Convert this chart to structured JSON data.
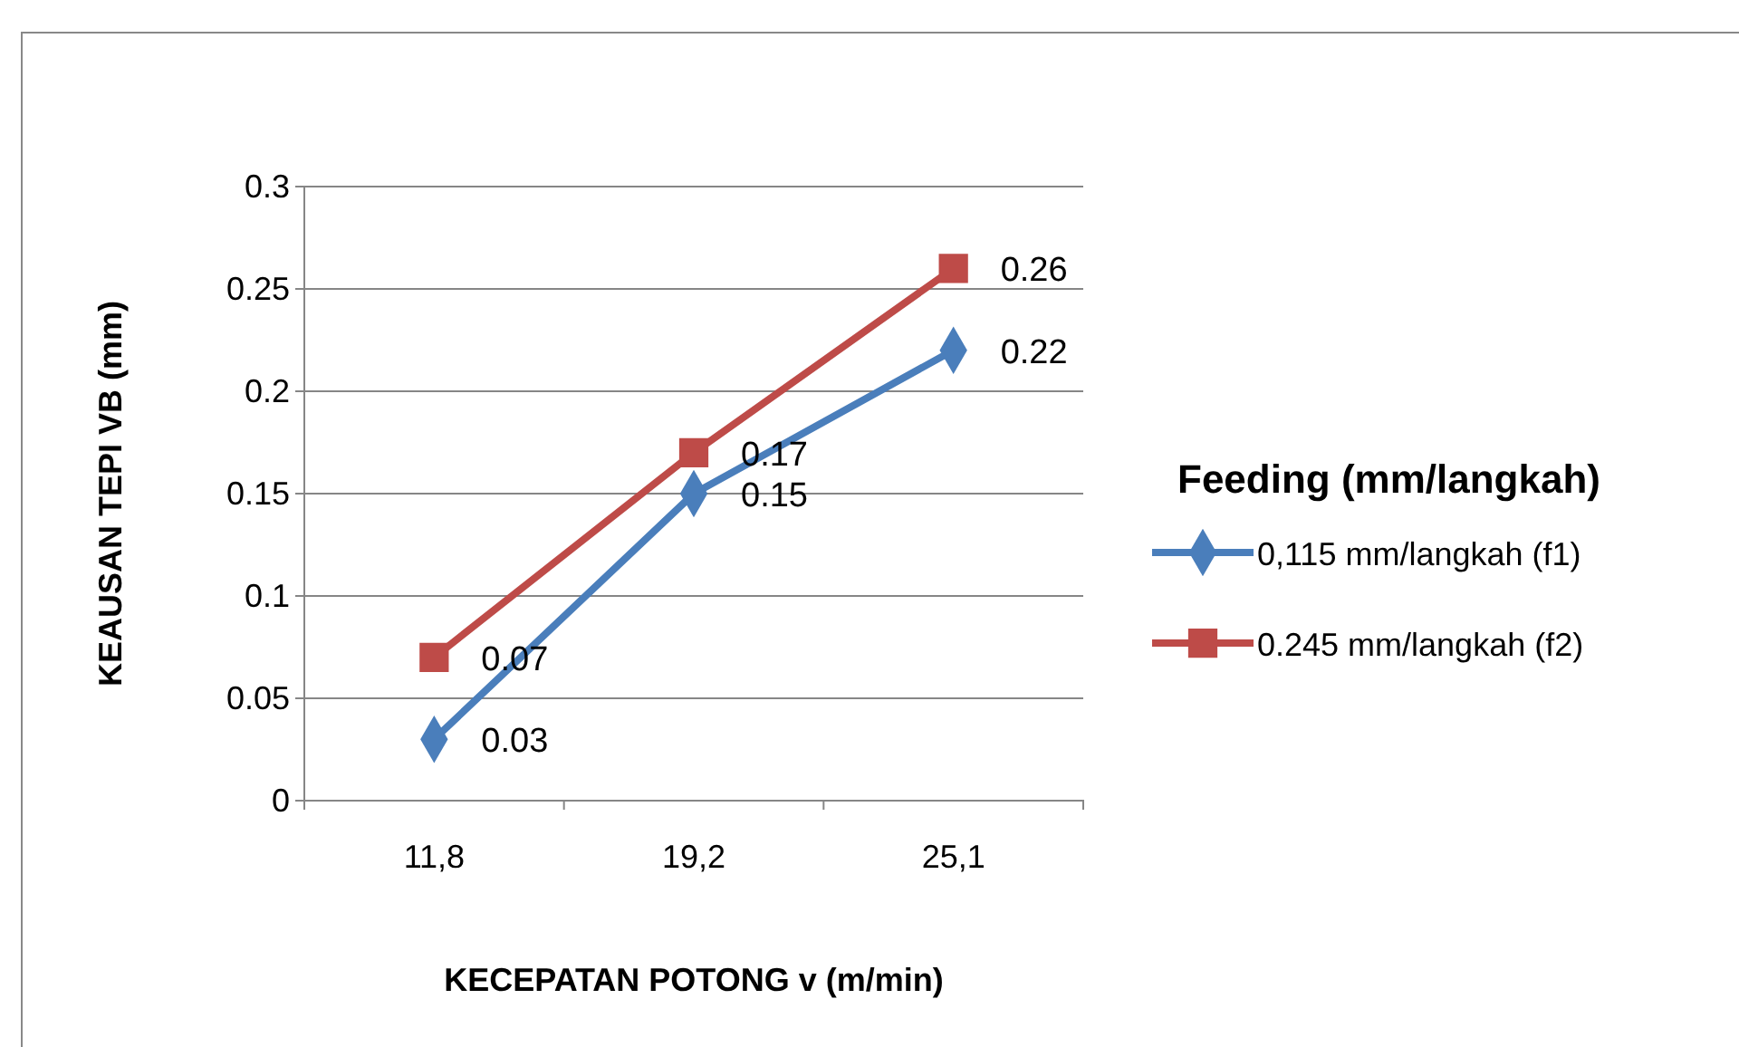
{
  "chart_data": {
    "type": "line",
    "xlabel": "KECEPATAN POTONG v  (m/min)",
    "ylabel": "KEAUSAN TEPI VB (mm)",
    "legend_title": "Feeding (mm/langkah)",
    "categories": [
      "11,8",
      "19,2",
      "25,1"
    ],
    "series": [
      {
        "name": "0,115 mm/langkah (f1)",
        "color": "#4a7ebb",
        "marker": "diamond",
        "values": [
          0.03,
          0.15,
          0.22
        ]
      },
      {
        "name": "0.245 mm/langkah (f2)",
        "color": "#be4b48",
        "marker": "square",
        "values": [
          0.07,
          0.17,
          0.26
        ]
      }
    ],
    "ylim": [
      0,
      0.3
    ],
    "yticks": [
      0,
      0.05,
      0.1,
      0.15,
      0.2,
      0.25,
      0.3
    ],
    "grid": "y",
    "legend": "right",
    "data_labels": true,
    "line_style": "solid"
  }
}
